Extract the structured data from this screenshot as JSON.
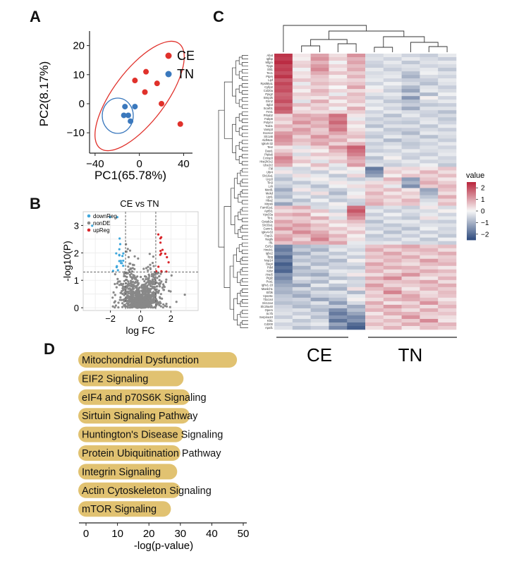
{
  "panels": {
    "a": {
      "letter": "A",
      "chart_type": "scatter",
      "xlabel": "PC1(65.78%)",
      "ylabel": "PC2(8.17%)",
      "xlim": [
        -45,
        48
      ],
      "ylim": [
        -17,
        25
      ],
      "xticks": [
        -40,
        0,
        40
      ],
      "yticks": [
        -10,
        0,
        10,
        20
      ],
      "legend_position": "top-right",
      "series": [
        {
          "name": "CE",
          "color": "#e0312b",
          "points": [
            [
              -4,
              8
            ],
            [
              6,
              11
            ],
            [
              5,
              4
            ],
            [
              16,
              7
            ],
            [
              20,
              0
            ],
            [
              37,
              -7
            ]
          ]
        },
        {
          "name": "TN",
          "color": "#3a78bd",
          "points": [
            [
              -13,
              -1
            ],
            [
              -4,
              -1
            ],
            [
              -14,
              -4
            ],
            [
              -10,
              -4
            ],
            [
              -8,
              -6
            ]
          ]
        }
      ]
    },
    "b": {
      "letter": "B",
      "chart_type": "scatter",
      "title": "CE vs TN",
      "xlabel": "log FC",
      "ylabel": "-log10(P)",
      "xlim": [
        -3.8,
        3.8
      ],
      "ylim": [
        -0.1,
        3.5
      ],
      "xticks": [
        -2,
        0,
        2
      ],
      "yticks": [
        0,
        1,
        2,
        3
      ],
      "fc_threshold": 1,
      "p_threshold": 1.3,
      "legend_position": "top-left",
      "legend": [
        {
          "name": "downReg",
          "color": "#3fa7dc"
        },
        {
          "name": "nonDE",
          "color": "#888888"
        },
        {
          "name": "upReg",
          "color": "#d9262b"
        }
      ]
    },
    "c": {
      "letter": "C",
      "chart_type": "heatmap",
      "legend_title": "value",
      "scale": [
        -2.5,
        2.5
      ],
      "legend_ticks": [
        2,
        1,
        0,
        -1,
        -2
      ],
      "colors": {
        "low": "#2e4a7d",
        "mid": "#f7f7f7",
        "high": "#b8243b"
      },
      "groups": [
        {
          "name": "CE",
          "columns": 5
        },
        {
          "name": "TN",
          "columns": 5
        }
      ],
      "genes": [
        "Abat",
        "Igfbp",
        "Mfgm",
        "Tpgs",
        "Slit1",
        "Tec1",
        "Ptprs",
        "Lipf",
        "Rpsl6ka1",
        "Cyfip2",
        "Col20a",
        "Ppig2",
        "Bmp2k",
        "Grin2",
        "Itgb3",
        "Scarb1",
        "Fmt1",
        "Prkab2",
        "Fabp6",
        "Polymr",
        "Tcab1",
        "Vamp3",
        "Exosc2",
        "Slc1a5",
        "Aldh6a1",
        "Igkv6-32",
        "Tesr",
        "Dast1",
        "Ptpla6",
        "Ccnsp3",
        "Hist2h3c2",
        "Ube2r2",
        "Fbl",
        "Ubr4",
        "Slc16a1",
        "Ucp3",
        "Tln3",
        "Lck",
        "Mettl1",
        "Mekd",
        "Lipt1",
        "Hba2",
        "Mrps6",
        "Fam81a1",
        "Apt5t1",
        "Vps33a",
        "Tln1",
        "Gstab2a",
        "Slc33a1",
        "Camn1",
        "Igkv4-63",
        "Fsp21",
        "Nagls",
        "Ifi1",
        "Eef1c",
        "Hmdc1",
        "Igbc2",
        "Bpg",
        "Nop14",
        "Bag4",
        "Pdxl",
        "Kdsr",
        "Atxp5",
        "Ptgl2",
        "Pus1",
        "Ighv1-18",
        "Mardch1",
        "Eif3k",
        "Vps26c",
        "Tbx1s4",
        "Slc12a4",
        "Slc25a40",
        "Opem",
        "Sc7b",
        "Serpina10",
        "Klk1",
        "Cd200",
        "Apaf1"
      ],
      "values": [
        [
          2.3,
          0.2,
          1.0,
          0.3,
          1.2,
          -0.4,
          -0.2,
          -0.5,
          -0.6,
          -0.2
        ],
        [
          2.2,
          0.1,
          1.2,
          0.5,
          0.8,
          -0.3,
          -0.5,
          -0.2,
          -0.4,
          -0.6
        ],
        [
          2.4,
          0.4,
          0.8,
          -0.1,
          1.0,
          -0.5,
          -0.2,
          -0.7,
          -0.3,
          -0.2
        ],
        [
          2.1,
          0.5,
          1.1,
          0.4,
          0.7,
          -0.6,
          -0.4,
          -0.3,
          -0.5,
          -0.4
        ],
        [
          2.2,
          -0.1,
          1.3,
          0.2,
          0.9,
          -0.2,
          -0.6,
          -0.4,
          -0.2,
          -0.7
        ],
        [
          2.0,
          0.3,
          0.9,
          0.6,
          0.5,
          -0.4,
          -0.3,
          -0.8,
          -0.1,
          -0.3
        ],
        [
          2.3,
          0.2,
          0.6,
          0.1,
          0.8,
          -0.3,
          -0.2,
          -1.0,
          -0.4,
          -0.5
        ],
        [
          1.8,
          0.6,
          0.5,
          0.3,
          0.4,
          -0.2,
          -0.5,
          -0.6,
          -0.6,
          -0.2
        ],
        [
          2.1,
          -0.2,
          0.7,
          0.5,
          0.6,
          -0.5,
          -0.1,
          -0.4,
          -0.8,
          -0.3
        ],
        [
          1.9,
          0.4,
          0.4,
          0.0,
          1.0,
          -0.1,
          -0.4,
          -0.9,
          -0.3,
          -0.6
        ],
        [
          2.0,
          0.1,
          0.8,
          0.4,
          0.3,
          0.2,
          -0.6,
          -1.2,
          -0.2,
          -0.4
        ],
        [
          1.7,
          0.5,
          0.6,
          -0.2,
          0.7,
          -0.3,
          -0.2,
          -0.5,
          -0.9,
          -0.1
        ],
        [
          1.8,
          0.3,
          0.2,
          0.6,
          0.5,
          -0.6,
          -0.4,
          -1.4,
          0.1,
          -0.5
        ],
        [
          2.0,
          -0.3,
          0.9,
          0.1,
          0.6,
          -0.2,
          -0.7,
          -0.8,
          -0.4,
          -0.2
        ],
        [
          1.6,
          0.7,
          0.4,
          0.5,
          0.2,
          -0.4,
          -0.3,
          -0.6,
          -0.7,
          -0.6
        ],
        [
          1.9,
          0.2,
          0.6,
          -0.1,
          0.9,
          -0.1,
          -0.5,
          -1.1,
          -0.3,
          -0.3
        ],
        [
          1.7,
          0.4,
          0.3,
          0.4,
          0.5,
          -0.5,
          -0.2,
          -0.4,
          -0.5,
          -0.8
        ],
        [
          0.4,
          1.0,
          0.8,
          1.6,
          0.2,
          -0.3,
          -0.8,
          -0.2,
          -0.6,
          -0.4
        ],
        [
          0.6,
          0.8,
          1.0,
          1.4,
          -0.2,
          -0.6,
          -0.4,
          -0.5,
          -0.3,
          -0.7
        ],
        [
          0.3,
          1.2,
          0.7,
          1.7,
          0.4,
          -0.4,
          -0.6,
          -0.7,
          -0.2,
          -0.5
        ],
        [
          0.8,
          0.6,
          0.9,
          1.3,
          0.1,
          -0.8,
          -0.3,
          -0.3,
          -0.7,
          -0.2
        ],
        [
          0.5,
          1.1,
          0.5,
          1.5,
          0.3,
          -0.2,
          -0.7,
          -0.6,
          -0.4,
          -0.6
        ],
        [
          1.1,
          0.9,
          0.6,
          1.0,
          0.5,
          -0.5,
          -0.5,
          -0.9,
          -0.2,
          -0.3
        ],
        [
          1.3,
          0.4,
          1.2,
          0.6,
          0.7,
          -0.7,
          -0.2,
          -0.4,
          -0.8,
          -0.4
        ],
        [
          1.2,
          0.7,
          0.8,
          0.9,
          0.2,
          -0.3,
          -0.9,
          -0.5,
          -0.3,
          -0.6
        ],
        [
          1.0,
          0.5,
          1.0,
          0.4,
          0.8,
          -0.6,
          -0.4,
          -0.7,
          -0.5,
          -0.2
        ],
        [
          0.2,
          -0.3,
          0.4,
          1.2,
          1.8,
          -0.4,
          -0.2,
          -0.6,
          -0.3,
          -0.5
        ],
        [
          0.5,
          0.2,
          0.1,
          0.8,
          1.6,
          -0.6,
          -0.5,
          -0.2,
          -0.4,
          -0.3
        ],
        [
          0.9,
          -0.4,
          0.6,
          0.5,
          1.4,
          -0.2,
          -0.3,
          -0.5,
          -0.6,
          -0.2
        ],
        [
          1.4,
          0.3,
          0.2,
          0.3,
          1.0,
          -0.8,
          0.1,
          -0.6,
          -0.2,
          -0.5
        ],
        [
          1.2,
          0.6,
          -0.3,
          0.6,
          0.8,
          -0.5,
          -0.4,
          -0.2,
          -0.5,
          -0.4
        ],
        [
          0.9,
          0.1,
          0.7,
          -0.2,
          1.1,
          -0.3,
          -0.6,
          -0.4,
          -0.1,
          -0.7
        ],
        [
          -0.3,
          -0.5,
          0.2,
          -0.4,
          0.1,
          -1.8,
          0.3,
          0.4,
          0.2,
          0.6
        ],
        [
          0.2,
          -0.4,
          -0.6,
          0.1,
          -0.2,
          -1.5,
          0.5,
          0.2,
          0.8,
          0.3
        ],
        [
          -0.5,
          0.3,
          -0.2,
          -0.7,
          0.4,
          -1.2,
          0.1,
          0.6,
          0.4,
          0.7
        ],
        [
          -0.8,
          -0.2,
          0.1,
          -0.3,
          -0.6,
          -0.4,
          0.8,
          -1.3,
          0.6,
          0.2
        ],
        [
          -0.4,
          -0.7,
          -0.3,
          0.2,
          -0.2,
          0.3,
          0.4,
          -1.0,
          0.9,
          0.5
        ],
        [
          -0.6,
          -0.3,
          -0.8,
          -0.1,
          0.3,
          0.6,
          -0.2,
          -1.5,
          0.5,
          0.8
        ],
        [
          -1.1,
          0.2,
          -0.4,
          -0.6,
          -0.3,
          0.4,
          0.7,
          0.2,
          -1.2,
          0.6
        ],
        [
          -0.7,
          -0.5,
          0.3,
          -0.9,
          -0.1,
          0.8,
          0.2,
          0.5,
          -1.0,
          0.3
        ],
        [
          -0.9,
          -0.2,
          -0.6,
          -0.4,
          0.2,
          0.5,
          0.6,
          0.3,
          -0.7,
          0.9
        ],
        [
          -0.4,
          -0.8,
          -0.1,
          -0.7,
          -0.5,
          0.7,
          0.3,
          0.8,
          -0.4,
          0.4
        ],
        [
          -1.2,
          -0.4,
          -0.5,
          0.1,
          -0.6,
          0.9,
          0.5,
          0.6,
          -0.2,
          0.7
        ],
        [
          0.6,
          0.9,
          -0.4,
          -0.2,
          1.6,
          -0.5,
          -0.3,
          -0.6,
          0.2,
          -0.4
        ],
        [
          0.3,
          0.4,
          0.6,
          -0.5,
          1.9,
          -0.2,
          -0.6,
          -0.3,
          -0.4,
          0.1
        ],
        [
          0.8,
          1.0,
          0.1,
          0.2,
          1.5,
          -0.6,
          -0.1,
          -0.5,
          -0.2,
          -0.5
        ],
        [
          0.4,
          0.5,
          0.9,
          -0.3,
          1.2,
          -0.3,
          -0.5,
          -0.7,
          0.3,
          -0.2
        ],
        [
          1.0,
          0.6,
          0.3,
          0.5,
          0.7,
          -0.8,
          -0.2,
          -0.2,
          -0.5,
          -0.6
        ],
        [
          0.7,
          1.1,
          0.7,
          0.1,
          0.4,
          -0.4,
          -0.7,
          -0.4,
          -0.3,
          -0.3
        ],
        [
          1.2,
          0.8,
          0.5,
          0.6,
          0.2,
          -0.6,
          -0.4,
          -0.8,
          -0.1,
          -0.5
        ],
        [
          0.5,
          1.3,
          0.9,
          0.3,
          0.6,
          -0.2,
          -0.8,
          -0.3,
          -0.6,
          -0.4
        ],
        [
          0.9,
          0.7,
          1.1,
          0.8,
          0.1,
          -0.7,
          -0.3,
          -0.6,
          -0.2,
          -0.7
        ],
        [
          1.1,
          0.4,
          1.4,
          0.5,
          0.3,
          -0.5,
          -0.6,
          -0.2,
          -0.7,
          -0.1
        ],
        [
          0.6,
          0.9,
          0.8,
          1.0,
          -0.2,
          -0.3,
          -0.2,
          -0.5,
          -0.4,
          -0.6
        ],
        [
          -1.6,
          -0.9,
          -0.7,
          -0.4,
          -0.3,
          0.6,
          0.8,
          1.0,
          0.5,
          0.7
        ],
        [
          -1.8,
          -0.6,
          -1.0,
          -0.2,
          -0.5,
          0.9,
          0.4,
          0.7,
          0.8,
          0.3
        ],
        [
          -1.5,
          -1.1,
          -0.4,
          -0.7,
          -0.2,
          0.5,
          1.0,
          0.4,
          0.6,
          0.9
        ],
        [
          -2.0,
          -0.5,
          -0.8,
          -0.3,
          -0.6,
          0.7,
          0.6,
          0.9,
          0.3,
          0.5
        ],
        [
          -1.7,
          -0.8,
          -0.6,
          -0.9,
          0.1,
          0.4,
          0.8,
          0.5,
          1.1,
          0.6
        ],
        [
          -2.2,
          -0.4,
          -0.9,
          -0.5,
          -0.4,
          1.0,
          0.5,
          0.3,
          0.7,
          0.8
        ],
        [
          -1.9,
          -1.0,
          -0.3,
          -0.6,
          -0.7,
          0.6,
          0.9,
          0.8,
          0.4,
          0.2
        ],
        [
          -2.1,
          -0.7,
          -0.7,
          -0.2,
          -0.3,
          0.8,
          0.3,
          0.6,
          0.9,
          0.7
        ],
        [
          -1.4,
          -0.9,
          -1.1,
          -0.4,
          0.2,
          0.3,
          0.7,
          1.2,
          0.5,
          0.4
        ],
        [
          -1.6,
          -0.3,
          -0.5,
          -0.8,
          -0.6,
          0.9,
          1.3,
          0.4,
          0.2,
          0.8
        ],
        [
          -1.3,
          -0.6,
          -0.9,
          -0.1,
          -0.4,
          0.5,
          0.6,
          0.7,
          1.0,
          0.3
        ],
        [
          -1.1,
          -1.2,
          -0.2,
          -0.7,
          -0.5,
          1.1,
          0.4,
          0.5,
          0.6,
          0.9
        ],
        [
          -0.9,
          -0.4,
          -0.8,
          -1.0,
          0.3,
          0.7,
          0.9,
          0.2,
          0.8,
          0.5
        ],
        [
          -1.0,
          -0.8,
          -0.4,
          -0.3,
          -0.9,
          0.4,
          1.4,
          0.6,
          0.3,
          0.7
        ],
        [
          -0.7,
          -1.1,
          -0.6,
          -0.5,
          -0.2,
          0.6,
          0.5,
          1.0,
          0.4,
          0.6
        ],
        [
          -0.6,
          -0.5,
          -1.2,
          -0.8,
          0.1,
          0.3,
          0.8,
          0.9,
          0.7,
          0.2
        ],
        [
          -0.8,
          -0.7,
          -0.3,
          -1.3,
          -0.4,
          0.9,
          0.2,
          0.4,
          1.2,
          0.5
        ],
        [
          -0.5,
          -0.9,
          -0.7,
          -0.6,
          -1.1,
          0.5,
          1.1,
          0.7,
          0.3,
          0.8
        ],
        [
          -0.4,
          -0.3,
          -0.9,
          -1.5,
          -0.8,
          0.8,
          0.6,
          0.3,
          0.9,
          0.4
        ],
        [
          -0.3,
          -0.6,
          -0.5,
          -1.8,
          -1.2,
          0.2,
          0.9,
          0.8,
          0.5,
          0.6
        ],
        [
          -0.6,
          -0.2,
          -0.8,
          -1.4,
          -1.6,
          0.6,
          0.3,
          1.2,
          0.4,
          0.3
        ],
        [
          -0.2,
          -0.7,
          -0.4,
          -1.9,
          -1.4,
          0.4,
          0.7,
          0.5,
          1.3,
          0.2
        ],
        [
          -0.5,
          -0.4,
          -0.2,
          -1.2,
          -2.0,
          0.7,
          0.4,
          0.9,
          0.6,
          0.8
        ],
        [
          -0.3,
          -0.8,
          -0.6,
          -1.6,
          -2.2,
          0.3,
          0.8,
          0.2,
          0.7,
          0.5
        ]
      ]
    },
    "d": {
      "letter": "D",
      "chart_type": "bar",
      "xlabel": "-log(p-value)",
      "xlim": [
        0,
        50
      ],
      "xticks": [
        0,
        10,
        20,
        30,
        40,
        50
      ],
      "bar_color": "#e1c271",
      "pathways": [
        {
          "label": "Mitochondrial Dysfunction",
          "value": 48
        },
        {
          "label": "EIF2 Signaling",
          "value": 31
        },
        {
          "label": "eIF4 and p70S6K Signaling",
          "value": 33
        },
        {
          "label": "Sirtuin Signaling Pathway",
          "value": 33
        },
        {
          "label": "Huntington's Disease Signaling",
          "value": 31
        },
        {
          "label": "Protein Ubiquitination Pathway",
          "value": 30
        },
        {
          "label": "Integrin Signaling",
          "value": 29
        },
        {
          "label": "Actin Cytoskeleton Signaling",
          "value": 30
        },
        {
          "label": "mTOR Signaling",
          "value": 27
        }
      ]
    }
  }
}
